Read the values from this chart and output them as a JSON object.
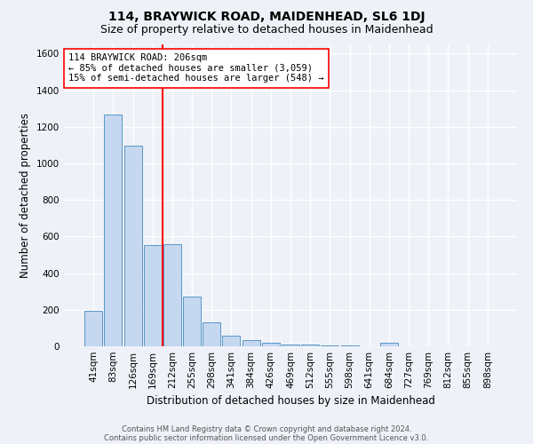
{
  "title": "114, BRAYWICK ROAD, MAIDENHEAD, SL6 1DJ",
  "subtitle": "Size of property relative to detached houses in Maidenhead",
  "xlabel": "Distribution of detached houses by size in Maidenhead",
  "ylabel": "Number of detached properties",
  "footnote1": "Contains HM Land Registry data © Crown copyright and database right 2024.",
  "footnote2": "Contains public sector information licensed under the Open Government Licence v3.0.",
  "categories": [
    "41sqm",
    "83sqm",
    "126sqm",
    "169sqm",
    "212sqm",
    "255sqm",
    "298sqm",
    "341sqm",
    "384sqm",
    "426sqm",
    "469sqm",
    "512sqm",
    "555sqm",
    "598sqm",
    "641sqm",
    "684sqm",
    "727sqm",
    "769sqm",
    "812sqm",
    "855sqm",
    "898sqm"
  ],
  "values": [
    195,
    1265,
    1095,
    555,
    560,
    270,
    130,
    60,
    35,
    20,
    10,
    8,
    5,
    3,
    2,
    20,
    2,
    1,
    1,
    1,
    1
  ],
  "bar_color": "#c5d8f0",
  "bar_edge_color": "#5a96c8",
  "vline_x": 3.5,
  "vline_color": "red",
  "annotation_text": "114 BRAYWICK ROAD: 206sqm\n← 85% of detached houses are smaller (3,059)\n15% of semi-detached houses are larger (548) →",
  "annotation_box_color": "white",
  "annotation_box_edge_color": "red",
  "ylim": [
    0,
    1650
  ],
  "yticks": [
    0,
    200,
    400,
    600,
    800,
    1000,
    1200,
    1400,
    1600
  ],
  "bg_color": "#eef2f8",
  "grid_color": "white",
  "title_fontsize": 10,
  "subtitle_fontsize": 9,
  "label_fontsize": 8.5,
  "tick_fontsize": 7.5,
  "annotation_fontsize": 7.5,
  "footnote_fontsize": 6
}
